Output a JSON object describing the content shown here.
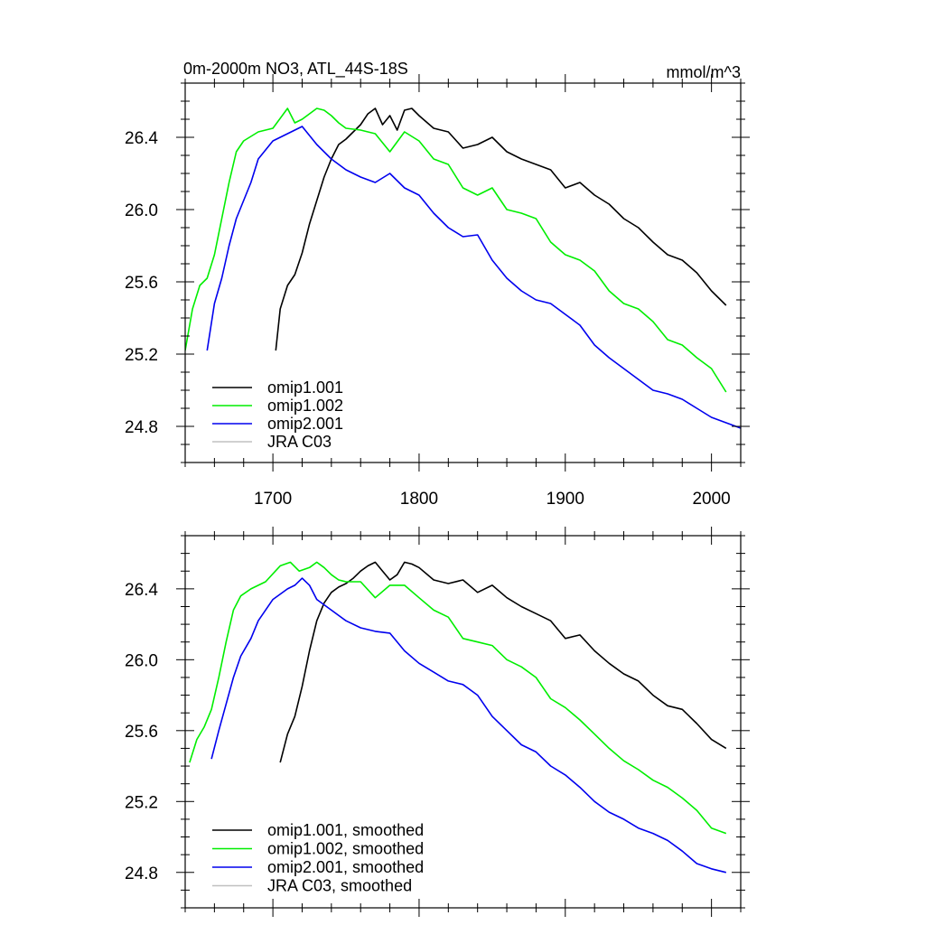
{
  "chart_data": [
    {
      "type": "line",
      "title": "0m-2000m NO3, ATL_44S-18S",
      "units": "mmol/m^3",
      "xlim": [
        1640,
        2020
      ],
      "ylim": [
        24.6,
        26.7
      ],
      "x_ticks": [
        1700,
        1800,
        1900,
        2000
      ],
      "y_ticks": [
        24.8,
        25.2,
        25.6,
        26.0,
        26.4
      ],
      "x_tick_labels": [
        "1700",
        "1800",
        "1900",
        "2000"
      ],
      "y_tick_labels": [
        "24.8",
        "25.2",
        "25.6",
        "26.0",
        "26.4"
      ],
      "legend_position": "lower-left",
      "series": [
        {
          "name": "omip1.001",
          "color": "#000000",
          "x": [
            1702,
            1705,
            1710,
            1715,
            1720,
            1725,
            1730,
            1735,
            1740,
            1745,
            1750,
            1755,
            1760,
            1765,
            1770,
            1775,
            1780,
            1785,
            1790,
            1795,
            1800,
            1810,
            1820,
            1830,
            1840,
            1850,
            1860,
            1870,
            1880,
            1890,
            1900,
            1910,
            1920,
            1930,
            1940,
            1950,
            1960,
            1970,
            1980,
            1990,
            2000,
            2010
          ],
          "y": [
            25.22,
            25.45,
            25.58,
            25.64,
            25.76,
            25.92,
            26.05,
            26.18,
            26.28,
            26.36,
            26.39,
            26.43,
            26.47,
            26.53,
            26.56,
            26.47,
            26.52,
            26.44,
            26.55,
            26.56,
            26.52,
            26.45,
            26.43,
            26.34,
            26.36,
            26.4,
            26.32,
            26.28,
            26.25,
            26.22,
            26.12,
            26.15,
            26.08,
            26.03,
            25.95,
            25.9,
            25.82,
            25.75,
            25.72,
            25.65,
            25.55,
            25.47
          ]
        },
        {
          "name": "omip1.002",
          "color": "#00ee00",
          "x": [
            1640,
            1645,
            1650,
            1655,
            1660,
            1665,
            1670,
            1675,
            1680,
            1690,
            1700,
            1710,
            1715,
            1720,
            1725,
            1730,
            1735,
            1740,
            1745,
            1750,
            1760,
            1770,
            1780,
            1790,
            1800,
            1810,
            1820,
            1830,
            1840,
            1850,
            1860,
            1870,
            1880,
            1890,
            1900,
            1910,
            1920,
            1930,
            1940,
            1950,
            1960,
            1970,
            1980,
            1990,
            2000,
            2010
          ],
          "y": [
            25.22,
            25.45,
            25.58,
            25.62,
            25.75,
            25.95,
            26.15,
            26.32,
            26.38,
            26.43,
            26.45,
            26.56,
            26.48,
            26.5,
            26.53,
            26.56,
            26.55,
            26.52,
            26.48,
            26.45,
            26.44,
            26.42,
            26.32,
            26.43,
            26.38,
            26.28,
            26.25,
            26.12,
            26.08,
            26.12,
            26.0,
            25.98,
            25.95,
            25.82,
            25.75,
            25.72,
            25.66,
            25.55,
            25.48,
            25.45,
            25.38,
            25.28,
            25.25,
            25.18,
            25.12,
            24.99
          ]
        },
        {
          "name": "omip2.001",
          "color": "#0000ee",
          "x": [
            1655,
            1660,
            1665,
            1670,
            1675,
            1680,
            1685,
            1690,
            1700,
            1710,
            1720,
            1730,
            1740,
            1750,
            1760,
            1770,
            1780,
            1790,
            1800,
            1810,
            1820,
            1830,
            1840,
            1850,
            1860,
            1870,
            1880,
            1890,
            1900,
            1910,
            1920,
            1930,
            1940,
            1950,
            1960,
            1970,
            1980,
            1990,
            2000,
            2010,
            2020
          ],
          "y": [
            25.22,
            25.48,
            25.62,
            25.8,
            25.95,
            26.05,
            26.15,
            26.28,
            26.38,
            26.42,
            26.46,
            26.36,
            26.28,
            26.22,
            26.18,
            26.15,
            26.2,
            26.12,
            26.08,
            25.98,
            25.9,
            25.85,
            25.86,
            25.72,
            25.62,
            25.55,
            25.5,
            25.48,
            25.42,
            25.36,
            25.25,
            25.18,
            25.12,
            25.06,
            25.0,
            24.98,
            24.95,
            24.9,
            24.85,
            24.82,
            24.79
          ]
        },
        {
          "name": "JRA C03",
          "color": "#c0c0c0",
          "x": [],
          "y": []
        }
      ]
    },
    {
      "type": "line",
      "xlim": [
        1640,
        2020
      ],
      "ylim": [
        24.6,
        26.7
      ],
      "x_ticks": [
        1700,
        1800,
        1900,
        2000
      ],
      "y_ticks": [
        24.8,
        25.2,
        25.6,
        26.0,
        26.4
      ],
      "y_tick_labels": [
        "24.8",
        "25.2",
        "25.6",
        "26.0",
        "26.4"
      ],
      "legend_position": "lower-left",
      "series": [
        {
          "name": "omip1.001, smoothed",
          "color": "#000000",
          "x": [
            1705,
            1710,
            1715,
            1720,
            1725,
            1730,
            1735,
            1740,
            1745,
            1750,
            1755,
            1760,
            1765,
            1770,
            1775,
            1780,
            1785,
            1790,
            1795,
            1800,
            1810,
            1820,
            1830,
            1840,
            1850,
            1860,
            1870,
            1880,
            1890,
            1900,
            1910,
            1920,
            1930,
            1940,
            1950,
            1960,
            1970,
            1980,
            1990,
            2000,
            2010
          ],
          "y": [
            25.42,
            25.58,
            25.68,
            25.85,
            26.05,
            26.22,
            26.32,
            26.38,
            26.41,
            26.43,
            26.46,
            26.5,
            26.53,
            26.55,
            26.5,
            26.45,
            26.48,
            26.55,
            26.54,
            26.52,
            26.45,
            26.43,
            26.45,
            26.38,
            26.42,
            26.35,
            26.3,
            26.26,
            26.22,
            26.12,
            26.14,
            26.05,
            25.98,
            25.92,
            25.88,
            25.8,
            25.74,
            25.72,
            25.64,
            25.55,
            25.5
          ]
        },
        {
          "name": "omip1.002, smoothed",
          "color": "#00ee00",
          "x": [
            1643,
            1648,
            1653,
            1658,
            1663,
            1668,
            1673,
            1678,
            1685,
            1695,
            1705,
            1712,
            1718,
            1725,
            1730,
            1735,
            1740,
            1745,
            1750,
            1760,
            1770,
            1780,
            1790,
            1800,
            1810,
            1820,
            1830,
            1840,
            1850,
            1860,
            1870,
            1880,
            1890,
            1900,
            1910,
            1920,
            1930,
            1940,
            1950,
            1960,
            1970,
            1980,
            1990,
            2000,
            2010
          ],
          "y": [
            25.42,
            25.55,
            25.62,
            25.72,
            25.9,
            26.1,
            26.28,
            26.36,
            26.4,
            26.44,
            26.53,
            26.55,
            26.5,
            26.52,
            26.55,
            26.52,
            26.48,
            26.45,
            26.44,
            26.44,
            26.35,
            26.42,
            26.42,
            26.35,
            26.28,
            26.24,
            26.12,
            26.1,
            26.08,
            26.0,
            25.96,
            25.9,
            25.78,
            25.73,
            25.66,
            25.58,
            25.5,
            25.43,
            25.38,
            25.32,
            25.28,
            25.22,
            25.15,
            25.05,
            25.02
          ]
        },
        {
          "name": "omip2.001, smoothed",
          "color": "#0000ee",
          "x": [
            1658,
            1663,
            1668,
            1673,
            1678,
            1685,
            1690,
            1700,
            1710,
            1715,
            1720,
            1725,
            1730,
            1740,
            1750,
            1760,
            1770,
            1780,
            1790,
            1800,
            1810,
            1820,
            1830,
            1840,
            1850,
            1860,
            1870,
            1880,
            1890,
            1900,
            1910,
            1920,
            1930,
            1940,
            1950,
            1960,
            1970,
            1980,
            1990,
            2000,
            2010
          ],
          "y": [
            25.44,
            25.6,
            25.75,
            25.9,
            26.02,
            26.12,
            26.22,
            26.34,
            26.4,
            26.42,
            26.46,
            26.42,
            26.34,
            26.28,
            26.22,
            26.18,
            26.16,
            26.15,
            26.05,
            25.98,
            25.93,
            25.88,
            25.86,
            25.8,
            25.68,
            25.6,
            25.52,
            25.48,
            25.4,
            25.35,
            25.28,
            25.2,
            25.14,
            25.1,
            25.05,
            25.02,
            24.98,
            24.92,
            24.85,
            24.82,
            24.8
          ]
        },
        {
          "name": "JRA C03, smoothed",
          "color": "#c0c0c0",
          "x": [],
          "y": []
        }
      ]
    }
  ]
}
